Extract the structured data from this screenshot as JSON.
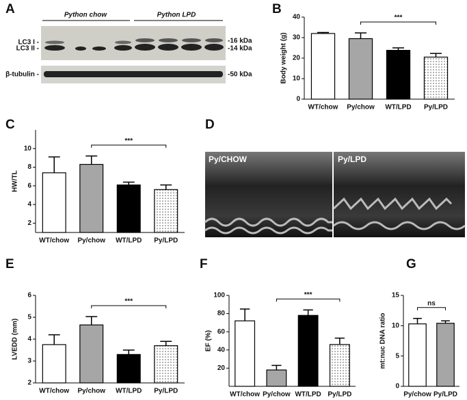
{
  "panel_letters": [
    "A",
    "B",
    "C",
    "D",
    "E",
    "F",
    "G"
  ],
  "blot": {
    "groups": [
      "Python chow",
      "Python LPD"
    ],
    "left_labels": [
      "LC3 I -",
      "LC3 II -",
      "β-tubulin -"
    ],
    "right_labels": [
      "-16 kDa",
      "-14 kDa",
      "-50 kDa"
    ]
  },
  "echo": {
    "labels": [
      "Py/CHOW",
      "Py/LPD"
    ]
  },
  "chart_data": [
    {
      "type": "bar",
      "ylabel": "Body weight (g)",
      "categories": [
        "WT/chow",
        "Py/chow",
        "WT/LPD",
        "Py/LPD"
      ],
      "values": [
        32,
        29.5,
        23.8,
        20.5
      ],
      "errors": [
        0.5,
        2.8,
        1.2,
        1.8
      ],
      "colors": [
        "#ffffff",
        "#a6a6a6",
        "#000000",
        "dotted"
      ],
      "ylim": [
        0,
        40
      ],
      "yticks": [
        0,
        10,
        20,
        30,
        40
      ],
      "annotations": [
        {
          "text": "***",
          "from": 1,
          "to": 3
        }
      ]
    },
    {
      "type": "bar",
      "ylabel": "HW/TL",
      "categories": [
        "WT/chow",
        "Py/chow",
        "WT/LPD",
        "Py/LPD"
      ],
      "values": [
        7.4,
        8.3,
        6.1,
        5.6
      ],
      "errors": [
        1.7,
        0.9,
        0.3,
        0.5
      ],
      "colors": [
        "#ffffff",
        "#a6a6a6",
        "#000000",
        "dotted"
      ],
      "ylim": [
        1,
        12
      ],
      "yticks": [
        2,
        4,
        6,
        8,
        10
      ],
      "annotations": [
        {
          "text": "***",
          "from": 1,
          "to": 3
        }
      ]
    },
    {
      "type": "bar",
      "ylabel": "LVEDD (mm)",
      "categories": [
        "WT/chow",
        "Py/chow",
        "WT/LPD",
        "Py/LPD"
      ],
      "values": [
        3.75,
        4.65,
        3.3,
        3.7
      ],
      "errors": [
        0.45,
        0.38,
        0.2,
        0.2
      ],
      "colors": [
        "#ffffff",
        "#a6a6a6",
        "#000000",
        "dotted"
      ],
      "ylim": [
        2,
        6
      ],
      "yticks": [
        2,
        3,
        4,
        5,
        6
      ],
      "annotations": [
        {
          "text": "***",
          "from": 1,
          "to": 3
        }
      ]
    },
    {
      "type": "bar",
      "ylabel": "EF (%)",
      "categories": [
        "WT/chow",
        "Py/chow",
        "WT/LPD",
        "Py/LPD"
      ],
      "values": [
        72,
        18,
        78,
        46
      ],
      "errors": [
        13,
        5,
        6,
        7
      ],
      "colors": [
        "#ffffff",
        "#a6a6a6",
        "#000000",
        "dotted"
      ],
      "ylim": [
        0,
        100
      ],
      "yticks": [
        20,
        40,
        60,
        80,
        100
      ],
      "annotations": [
        {
          "text": "***",
          "from": 1,
          "to": 3
        }
      ]
    },
    {
      "type": "bar",
      "ylabel": "mt:nuc DNA ratio",
      "categories": [
        "Py/chow",
        "Py/LPD"
      ],
      "values": [
        10.3,
        10.4
      ],
      "errors": [
        0.9,
        0.4
      ],
      "colors": [
        "#ffffff",
        "#a6a6a6"
      ],
      "ylim": [
        0,
        15
      ],
      "yticks": [
        0,
        5,
        10,
        15
      ],
      "annotations": [
        {
          "text": "ns",
          "from": 0,
          "to": 1
        }
      ]
    }
  ]
}
